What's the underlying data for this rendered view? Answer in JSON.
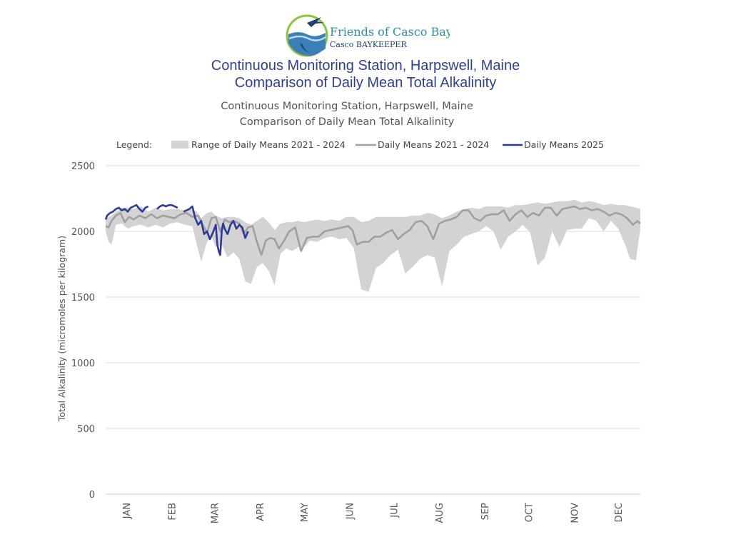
{
  "logo": {
    "org_name": "Friends of Casco Bay",
    "org_subtitle": "Casco BAYKEEPER"
  },
  "header": {
    "title_line1": "Continuous Monitoring Station, Harpswell, Maine",
    "title_line2": "Comparison of Daily Mean Total Alkalinity",
    "subtitle_line1": "Continuous Monitoring Station, Harpswell, Maine",
    "subtitle_line2": "Comparison of Daily Mean Total Alkalinity"
  },
  "legend": {
    "label": "Legend:",
    "range_label": "Range of Daily Means 2021 - 2024",
    "mean_label": "Daily Means 2021 - 2024",
    "current_label": "Daily Means 2025"
  },
  "colors": {
    "range_fill": "#d3d3d3",
    "mean_line": "#a0a0a0",
    "current_line": "#2e3b96",
    "grid": "#dcdcdc",
    "title": "#2e3f92"
  },
  "chart_data": {
    "type": "area",
    "ylabel": "Total Alkalinity (micromoles per kilogram)",
    "xlabel": "",
    "ylim": [
      0,
      2500
    ],
    "y_ticks": [
      0,
      500,
      1000,
      1500,
      2000,
      2500
    ],
    "x_unit": "day of year",
    "xlim": [
      1,
      365
    ],
    "month_labels": [
      "JAN",
      "FEB",
      "MAR",
      "APR",
      "MAY",
      "JUN",
      "JUL",
      "AUG",
      "SEP",
      "OCT",
      "NOV",
      "DEC"
    ],
    "month_label_days": [
      15,
      46,
      75,
      106,
      136,
      167,
      197,
      228,
      259,
      289,
      320,
      350
    ],
    "grid": "horizontal",
    "legend_position": "top",
    "series": [
      {
        "name": "Range of Daily Means 2021 - 2024",
        "kind": "band",
        "x": [
          1,
          3,
          5,
          8,
          12,
          16,
          20,
          25,
          30,
          35,
          40,
          45,
          50,
          55,
          60,
          63,
          66,
          70,
          73,
          76,
          80,
          84,
          88,
          92,
          96,
          100,
          104,
          108,
          112,
          116,
          120,
          124,
          128,
          132,
          136,
          140,
          145,
          150,
          155,
          160,
          165,
          170,
          175,
          180,
          185,
          190,
          195,
          200,
          205,
          210,
          215,
          220,
          225,
          230,
          235,
          240,
          245,
          250,
          255,
          260,
          265,
          270,
          275,
          280,
          285,
          290,
          295,
          300,
          305,
          310,
          315,
          320,
          325,
          330,
          335,
          340,
          345,
          350,
          355,
          358,
          362,
          365
        ],
        "low": [
          2000,
          1920,
          1900,
          2050,
          2060,
          2020,
          2040,
          2050,
          2030,
          2050,
          2030,
          2060,
          2070,
          2050,
          2040,
          1900,
          1770,
          1920,
          1960,
          1880,
          1900,
          1800,
          1840,
          1790,
          1620,
          1600,
          1730,
          1760,
          1700,
          1590,
          1830,
          1870,
          1850,
          1880,
          1880,
          1930,
          1920,
          1950,
          1960,
          1940,
          1950,
          1870,
          1560,
          1540,
          1720,
          1760,
          1820,
          1860,
          1680,
          1730,
          1790,
          1820,
          1800,
          1580,
          1850,
          1900,
          1960,
          1980,
          2000,
          2040,
          2000,
          1860,
          1960,
          2000,
          2050,
          1990,
          1740,
          1800,
          2000,
          1880,
          2010,
          2020,
          2020,
          2100,
          2080,
          2000,
          2080,
          2020,
          1890,
          1790,
          1780,
          2020
        ],
        "high": [
          2090,
          2110,
          2120,
          2150,
          2180,
          2180,
          2170,
          2190,
          2150,
          2180,
          2160,
          2170,
          2170,
          2160,
          2170,
          2150,
          2100,
          2140,
          2150,
          2120,
          2100,
          2110,
          2110,
          2100,
          2070,
          2050,
          2080,
          2110,
          2070,
          2010,
          2060,
          2070,
          2070,
          2080,
          2070,
          2080,
          2090,
          2080,
          2090,
          2080,
          2110,
          2110,
          2070,
          2080,
          2110,
          2110,
          2110,
          2110,
          2110,
          2120,
          2120,
          2140,
          2130,
          2100,
          2120,
          2150,
          2170,
          2180,
          2170,
          2190,
          2190,
          2190,
          2180,
          2200,
          2200,
          2210,
          2220,
          2210,
          2220,
          2230,
          2230,
          2240,
          2220,
          2230,
          2220,
          2200,
          2210,
          2200,
          2200,
          2190,
          2180,
          2170
        ]
      },
      {
        "name": "Daily Means 2021 - 2024",
        "kind": "line",
        "x": [
          1,
          3,
          5,
          8,
          11,
          14,
          17,
          20,
          24,
          28,
          32,
          36,
          40,
          44,
          48,
          52,
          56,
          60,
          64,
          67,
          70,
          73,
          76,
          79,
          82,
          85,
          88,
          92,
          95,
          98,
          101,
          104,
          107,
          110,
          113,
          116,
          119,
          122,
          126,
          130,
          134,
          138,
          142,
          146,
          150,
          154,
          158,
          162,
          166,
          169,
          172,
          176,
          180,
          184,
          188,
          192,
          196,
          200,
          204,
          208,
          212,
          216,
          220,
          224,
          228,
          232,
          236,
          240,
          244,
          248,
          252,
          256,
          260,
          264,
          268,
          272,
          276,
          280,
          284,
          288,
          292,
          296,
          300,
          304,
          308,
          312,
          316,
          320,
          324,
          328,
          332,
          336,
          340,
          344,
          348,
          352,
          356,
          360,
          363,
          365
        ],
        "y": [
          2040,
          2030,
          2080,
          2120,
          2140,
          2070,
          2110,
          2090,
          2120,
          2100,
          2130,
          2100,
          2120,
          2110,
          2100,
          2130,
          2140,
          2110,
          2120,
          2050,
          1990,
          2100,
          2110,
          2000,
          2090,
          2070,
          2080,
          2060,
          1980,
          2030,
          2040,
          1920,
          1820,
          1930,
          1950,
          1940,
          1870,
          1920,
          2000,
          2030,
          1850,
          1950,
          1960,
          1960,
          2000,
          2010,
          2020,
          2030,
          2040,
          2010,
          1900,
          1920,
          1920,
          1960,
          1960,
          1990,
          2010,
          1940,
          1980,
          2010,
          2070,
          2080,
          2040,
          1940,
          2060,
          2080,
          2090,
          2110,
          2160,
          2160,
          2100,
          2080,
          2120,
          2130,
          2130,
          2160,
          2080,
          2130,
          2160,
          2110,
          2140,
          2120,
          2180,
          2180,
          2120,
          2170,
          2180,
          2190,
          2170,
          2180,
          2160,
          2170,
          2150,
          2120,
          2140,
          2130,
          2100,
          2050,
          2080,
          2060
        ]
      },
      {
        "name": "Daily Means 2025",
        "kind": "line",
        "x": [
          1,
          2,
          4,
          6,
          8,
          10,
          12,
          14,
          16,
          18,
          20,
          22,
          24,
          26,
          28,
          30,
          32,
          34,
          36,
          38,
          40,
          42,
          44,
          46,
          48,
          50,
          52,
          54,
          56,
          58,
          60,
          62,
          64,
          66,
          68,
          70,
          72,
          74,
          76,
          77,
          78,
          79,
          80,
          81,
          82,
          84,
          86,
          88,
          90,
          92,
          94,
          96,
          98
        ],
        "y": [
          2090,
          2120,
          2140,
          2150,
          2170,
          2180,
          2160,
          2170,
          2150,
          2180,
          2190,
          2200,
          2170,
          2150,
          2180,
          2190,
          null,
          null,
          2170,
          2190,
          2200,
          2190,
          2200,
          2200,
          2190,
          2180,
          null,
          2150,
          2160,
          2170,
          2190,
          2100,
          2050,
          2080,
          1980,
          2000,
          1940,
          1990,
          2050,
          1900,
          1850,
          1820,
          2000,
          2060,
          2020,
          1980,
          2050,
          2080,
          2020,
          2050,
          2030,
          1950,
          2000
        ]
      }
    ]
  }
}
